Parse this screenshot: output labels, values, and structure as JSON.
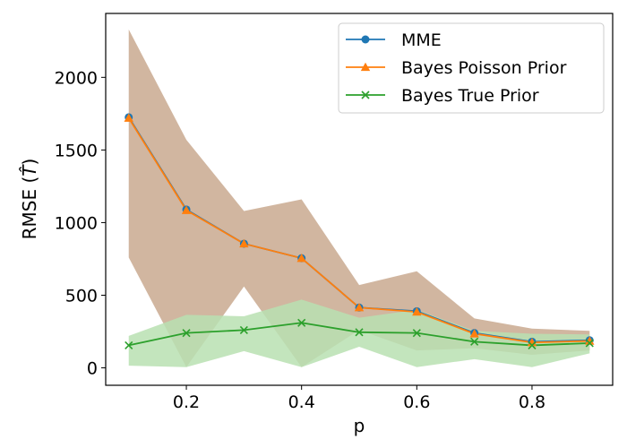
{
  "chart_data": {
    "type": "line",
    "xlabel": "p",
    "ylabel": "RMSE (",
    "ylabel_math": "T̂",
    "ylabel_close": ")",
    "xlim": [
      0.06,
      0.94
    ],
    "ylim": [
      -120,
      2440
    ],
    "xticks": [
      0.2,
      0.4,
      0.6,
      0.8
    ],
    "xtick_labels": [
      "0.2",
      "0.4",
      "0.6",
      "0.8"
    ],
    "yticks": [
      0,
      500,
      1000,
      1500,
      2000
    ],
    "ytick_labels": [
      "0",
      "500",
      "1000",
      "1500",
      "2000"
    ],
    "x": [
      0.1,
      0.2,
      0.3,
      0.4,
      0.5,
      0.6,
      0.7,
      0.8,
      0.9
    ],
    "series": [
      {
        "name": "MME",
        "values": [
          1725,
          1090,
          855,
          755,
          415,
          390,
          240,
          180,
          190
        ],
        "color": "#1f77b4",
        "marker": "circle"
      },
      {
        "name": "Bayes Poisson Prior",
        "values": [
          1720,
          1085,
          855,
          755,
          415,
          385,
          235,
          175,
          185
        ],
        "color": "#ff7f0e",
        "marker": "triangle"
      },
      {
        "name": "Bayes True Prior",
        "values": [
          155,
          240,
          260,
          310,
          245,
          240,
          180,
          155,
          170
        ],
        "color": "#2ca02c",
        "marker": "x"
      }
    ],
    "bands": [
      {
        "series": "Bayes Poisson Prior",
        "lower": [
          760,
          5,
          560,
          5,
          260,
          120,
          135,
          90,
          120
        ],
        "upper": [
          2330,
          1570,
          1080,
          1160,
          570,
          665,
          340,
          270,
          255
        ],
        "color": "#c9a98f"
      },
      {
        "series": "Bayes True Prior",
        "lower": [
          15,
          5,
          115,
          5,
          145,
          5,
          60,
          5,
          100
        ],
        "upper": [
          220,
          365,
          355,
          470,
          345,
          400,
          255,
          235,
          230
        ],
        "color": "#b8e0b1"
      }
    ],
    "legend_position": "top-right",
    "grid": false
  }
}
